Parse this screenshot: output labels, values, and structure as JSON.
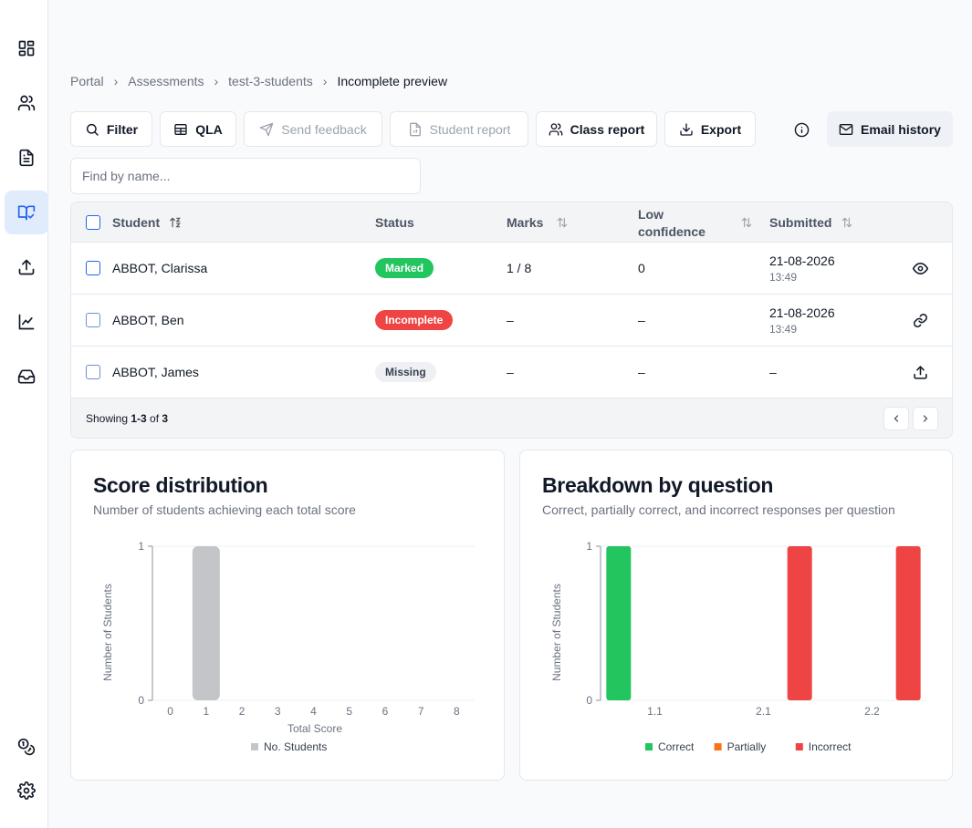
{
  "sidebar": {
    "items": [
      {
        "icon": "dashboard-icon"
      },
      {
        "icon": "users-icon"
      },
      {
        "icon": "document-icon"
      },
      {
        "icon": "book-check-icon"
      },
      {
        "icon": "upload-icon"
      },
      {
        "icon": "line-chart-icon"
      },
      {
        "icon": "inbox-icon"
      }
    ],
    "bottom": [
      {
        "icon": "coins-icon"
      },
      {
        "icon": "settings-icon"
      }
    ]
  },
  "breadcrumb": [
    "Portal",
    "Assessments",
    "test-3-students",
    "Incomplete preview"
  ],
  "toolbar": {
    "filter": "Filter",
    "qla": "QLA",
    "send_feedback": "Send feedback",
    "student_report": "Student report",
    "class_report": "Class report",
    "export": "Export",
    "email_history": "Email history"
  },
  "search": {
    "placeholder": "Find by name..."
  },
  "table": {
    "headers": {
      "student": "Student",
      "status": "Status",
      "marks": "Marks",
      "low_conf_1": "Low",
      "low_conf_2": "confidence",
      "submitted": "Submitted"
    },
    "rows": [
      {
        "name": "ABBOT, Clarissa",
        "status": "Marked",
        "marks": "1 / 8",
        "low": "0",
        "date": "21-08-2026",
        "time": "13:49",
        "action": "eye-icon"
      },
      {
        "name": "ABBOT, Ben",
        "status": "Incomplete",
        "marks": "–",
        "low": "–",
        "date": "21-08-2026",
        "time": "13:49",
        "action": "link-icon"
      },
      {
        "name": "ABBOT, James",
        "status": "Missing",
        "marks": "–",
        "low": "–",
        "date": "–",
        "time": "",
        "action": "upload-icon"
      }
    ],
    "footer": {
      "prefix": "Showing ",
      "range": "1-3",
      "mid": " of ",
      "total": "3"
    }
  },
  "score_card": {
    "title": "Score distribution",
    "subtitle": "Number of students achieving each total score"
  },
  "breakdown_card": {
    "title": "Breakdown by question",
    "subtitle": "Correct, partially correct, and incorrect responses per question"
  },
  "chart_data": [
    {
      "type": "bar",
      "title": "Score distribution",
      "subtitle": "Number of students achieving each total score",
      "xlabel": "Total Score",
      "ylabel": "Number of Students",
      "categories": [
        "0",
        "1",
        "2",
        "3",
        "4",
        "5",
        "6",
        "7",
        "8"
      ],
      "ylim": [
        0,
        1
      ],
      "yticks": [
        0,
        1
      ],
      "grid": true,
      "legend": "bottom",
      "series": [
        {
          "name": "No. Students",
          "color": "#c4c5c9",
          "values": [
            0,
            1,
            0,
            0,
            0,
            0,
            0,
            0,
            0
          ]
        }
      ]
    },
    {
      "type": "bar",
      "title": "Breakdown by question",
      "subtitle": "Correct, partially correct, and incorrect responses per question",
      "xlabel": "",
      "ylabel": "Number of Students",
      "categories": [
        "1.1",
        "2.1",
        "2.2"
      ],
      "ylim": [
        0,
        1
      ],
      "yticks": [
        0,
        1
      ],
      "grid": true,
      "legend": "bottom",
      "series": [
        {
          "name": "Correct",
          "color": "#22c55e",
          "values": [
            1,
            0,
            0
          ]
        },
        {
          "name": "Partially",
          "color": "#f97316",
          "values": [
            0,
            0,
            0
          ]
        },
        {
          "name": "Incorrect",
          "color": "#ef4444",
          "values": [
            0,
            1,
            1
          ]
        }
      ]
    }
  ]
}
